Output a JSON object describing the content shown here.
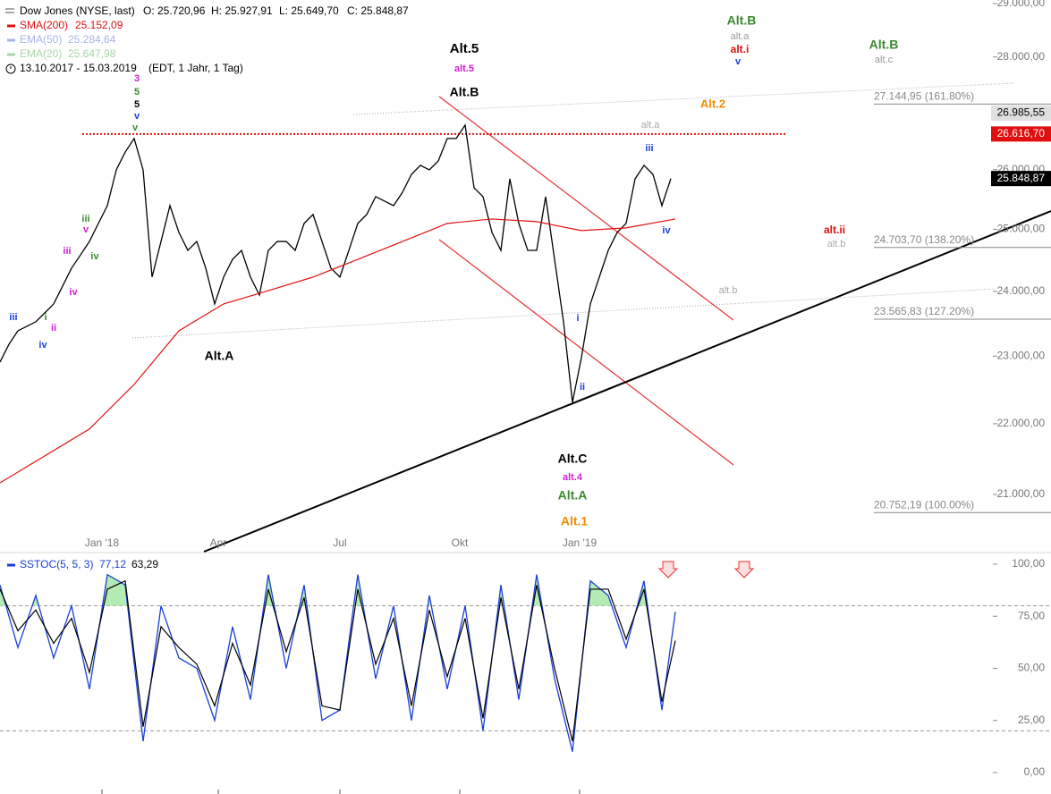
{
  "chart_data": [
    {
      "type": "line",
      "title": "Dow Jones (NYSE, last)",
      "ohlc": [
        "O: 25.720,96",
        "H: 25.927,91",
        "L: 25.649,70",
        "C: 25.848,87"
      ],
      "indicators": [
        {
          "name": "SMA(200)",
          "value_label": "25.152,09",
          "color": "#e01010"
        },
        {
          "name": "EMA(50)",
          "value_label": "25.284,64",
          "color": "#aab4e6"
        },
        {
          "name": "EMA(20)",
          "value_label": "25.647,98",
          "color": "#a8d6a8"
        }
      ],
      "date_range": "13.10.2017 - 15.03.2019",
      "range_note": "(EDT, 1 Jahr, 1 Tag)",
      "log": true,
      "xlim": [
        0,
        111
      ],
      "xticks": [
        {
          "value": 11.4,
          "label": "Jan '18"
        },
        {
          "value": 24.4,
          "label": "Apr"
        },
        {
          "value": 38,
          "label": "Jul"
        },
        {
          "value": 51.4,
          "label": "Okt"
        },
        {
          "value": 64.8,
          "label": "Jan '19"
        }
      ],
      "ylim": [
        20225,
        29068
      ],
      "yticks": [
        {
          "value": 21000,
          "label": "21.000,00"
        },
        {
          "value": 22000,
          "label": "22.000,00"
        },
        {
          "value": 23000,
          "label": "23.000,00"
        },
        {
          "value": 24000,
          "label": "24.000,00"
        },
        {
          "value": 25000,
          "label": "25.000,00"
        },
        {
          "value": 26000,
          "label": "26.000,00"
        },
        {
          "value": 28000,
          "label": "28.000,00"
        },
        {
          "value": 29000,
          "label": "29.000,00"
        }
      ],
      "series": [
        {
          "name": "Dow Jones",
          "color": "#000000",
          "x": [
            0,
            1,
            2,
            3,
            4,
            5,
            6,
            7,
            8,
            9,
            10,
            11,
            12,
            13,
            14,
            15,
            16,
            17,
            18,
            19,
            20,
            21,
            22,
            23,
            24,
            25,
            26,
            27,
            28,
            29,
            30,
            31,
            32,
            33,
            34,
            35,
            36,
            37,
            38,
            39,
            40,
            41,
            42,
            43,
            44,
            45,
            46,
            47,
            48,
            49,
            50,
            51,
            52,
            53,
            54,
            55,
            56,
            57,
            58,
            59,
            60,
            61,
            62,
            63,
            64,
            65,
            66,
            67,
            68,
            69,
            70,
            71,
            72,
            73,
            74,
            75
          ],
          "values": [
            22910,
            23180,
            23386,
            23455,
            23525,
            23662,
            23803,
            24084,
            24369,
            24583,
            24801,
            25097,
            25392,
            25996,
            26303,
            26538,
            25996,
            24227,
            24801,
            25392,
            24949,
            24656,
            24801,
            24369,
            23803,
            24227,
            24511,
            24656,
            24227,
            23942,
            24656,
            24801,
            24801,
            24656,
            25097,
            25245,
            24801,
            24369,
            24227,
            24656,
            25097,
            25245,
            25542,
            25467,
            25392,
            25616,
            25920,
            26073,
            25996,
            26150,
            26538,
            26538,
            26773,
            25691,
            25542,
            24949,
            24656,
            25844,
            25097,
            24656,
            24656,
            25542,
            24511,
            23525,
            22313,
            22977,
            23803,
            24227,
            24656,
            24949,
            25097,
            25844,
            26073,
            25920,
            25392,
            25849
          ]
        },
        {
          "name": "SMA(200)",
          "color": "#e01010",
          "x": [
            0,
            10,
            15,
            20,
            25,
            30,
            35,
            40,
            45,
            50,
            55,
            60,
            65,
            70,
            75.5
          ],
          "values": [
            21161,
            21924,
            22577,
            23386,
            23803,
            24012,
            24227,
            24511,
            24801,
            25097,
            25170,
            25126,
            24979,
            25023,
            25170
          ]
        }
      ],
      "hline": {
        "value": 26616.7,
        "color": "#e01010"
      },
      "price_boxes": [
        {
          "value": 26985.55,
          "label": "26.985,55",
          "color": "#e0e0e0",
          "text_color": "#000000"
        },
        {
          "value": 26616.7,
          "label": "26.616,70",
          "color": "#e01010",
          "text_color": "#ffffff"
        },
        {
          "value": 25848.87,
          "label": "25.848,87",
          "color": "#000000",
          "text_color": "#ffffff"
        }
      ],
      "fib_levels": [
        {
          "value": 27144.95,
          "label": "27.144,95 (161.80%)"
        },
        {
          "value": 24703.7,
          "label": "24.703,70 (138.20%)"
        },
        {
          "value": 23565.83,
          "label": "23.565,83 (127.20%)"
        },
        {
          "value": 20752.19,
          "label": "20.752,19 (100.00%)"
        }
      ],
      "annotations": [
        {
          "text": "Alt.B",
          "color": "#3a8a2e"
        },
        {
          "text": "alt.a",
          "color": "#999999"
        },
        {
          "text": "alt.i",
          "color": "#e01010"
        },
        {
          "text": "v",
          "color": "#1a3fd8"
        },
        {
          "text": "Alt.B",
          "color": "#3a8a2e"
        },
        {
          "text": "alt.c",
          "color": "#999999"
        },
        {
          "text": "Alt.5",
          "color": "#000000"
        },
        {
          "text": "alt.5",
          "color": "#d21ed2"
        },
        {
          "text": "Alt.B",
          "color": "#000000"
        },
        {
          "text": "Alt.2",
          "color": "#f08c00"
        },
        {
          "text": "alt.a",
          "color": "#aaaaaa"
        },
        {
          "text": "iii",
          "color": "#1a3fd8"
        },
        {
          "text": "iv",
          "color": "#1a3fd8"
        },
        {
          "text": "alt.ii",
          "color": "#e01010"
        },
        {
          "text": "alt.b",
          "color": "#aaaaaa"
        },
        {
          "text": "alt.b",
          "color": "#aaaaaa"
        },
        {
          "text": "i",
          "color": "#1a3fd8"
        },
        {
          "text": "ii",
          "color": "#1a3fd8"
        },
        {
          "text": "Alt.C",
          "color": "#000000"
        },
        {
          "text": "alt.4",
          "color": "#d21ed2"
        },
        {
          "text": "Alt.A",
          "color": "#3a8a2e"
        },
        {
          "text": "Alt.1",
          "color": "#f08c00"
        },
        {
          "text": "Alt.A",
          "color": "#000000"
        },
        {
          "text": "3",
          "color": "#d21ed2"
        },
        {
          "text": "5",
          "color": "#3a8a2e"
        },
        {
          "text": "5",
          "color": "#000000"
        },
        {
          "text": "v",
          "color": "#1a3fd8"
        },
        {
          "text": "v",
          "color": "#3a8a2e"
        },
        {
          "text": "iii",
          "color": "#3a8a2e"
        },
        {
          "text": "v",
          "color": "#d21ed2"
        },
        {
          "text": "iv",
          "color": "#3a8a2e"
        },
        {
          "text": "iii",
          "color": "#d21ed2"
        },
        {
          "text": "iv",
          "color": "#d21ed2"
        },
        {
          "text": "i",
          "color": "#3a8a2e"
        },
        {
          "text": "ii",
          "color": "#d21ed2"
        },
        {
          "text": "iii",
          "color": "#1a3fd8"
        },
        {
          "text": "iv",
          "color": "#1a3fd8"
        }
      ]
    },
    {
      "type": "line",
      "title": "SSTOC(5, 5, 3)",
      "xlim": [
        0,
        111
      ],
      "ylim": [
        -10.3,
        104.7
      ],
      "yticks": [
        {
          "value": 0,
          "label": "0,00"
        },
        {
          "value": 25,
          "label": "25,00"
        },
        {
          "value": 50,
          "label": "50,00"
        },
        {
          "value": 75,
          "label": "75,00"
        },
        {
          "value": 100,
          "label": "100,00"
        }
      ],
      "levels": [
        80,
        20
      ],
      "fill_color": "#b4eab4",
      "x": [
        0,
        2,
        4,
        6,
        8,
        10,
        12,
        14,
        16,
        18,
        20,
        22,
        24,
        26,
        28,
        30,
        32,
        34,
        36,
        38,
        40,
        42,
        44,
        46,
        48,
        50,
        52,
        54,
        56,
        58,
        60,
        62,
        64,
        66,
        68,
        70,
        72,
        74,
        75.5
      ],
      "series": [
        {
          "color": "#1a3fd8",
          "last_label": "77,12",
          "values": [
            90,
            60,
            85,
            55,
            80,
            40,
            95,
            90,
            15,
            80,
            55,
            50,
            25,
            70,
            35,
            95,
            50,
            90,
            25,
            30,
            95,
            45,
            80,
            25,
            85,
            40,
            80,
            20,
            90,
            35,
            95,
            45,
            10,
            92,
            85,
            60,
            92,
            30,
            77.12
          ]
        },
        {
          "color": "#000000",
          "last_label": "63,29",
          "values": [
            88,
            68,
            78,
            62,
            74,
            48,
            88,
            92,
            22,
            70,
            60,
            52,
            32,
            62,
            42,
            88,
            58,
            84,
            32,
            30,
            88,
            52,
            74,
            32,
            78,
            46,
            74,
            26,
            84,
            40,
            90,
            50,
            15,
            88,
            88,
            64,
            88,
            34,
            63.29
          ]
        }
      ]
    }
  ]
}
